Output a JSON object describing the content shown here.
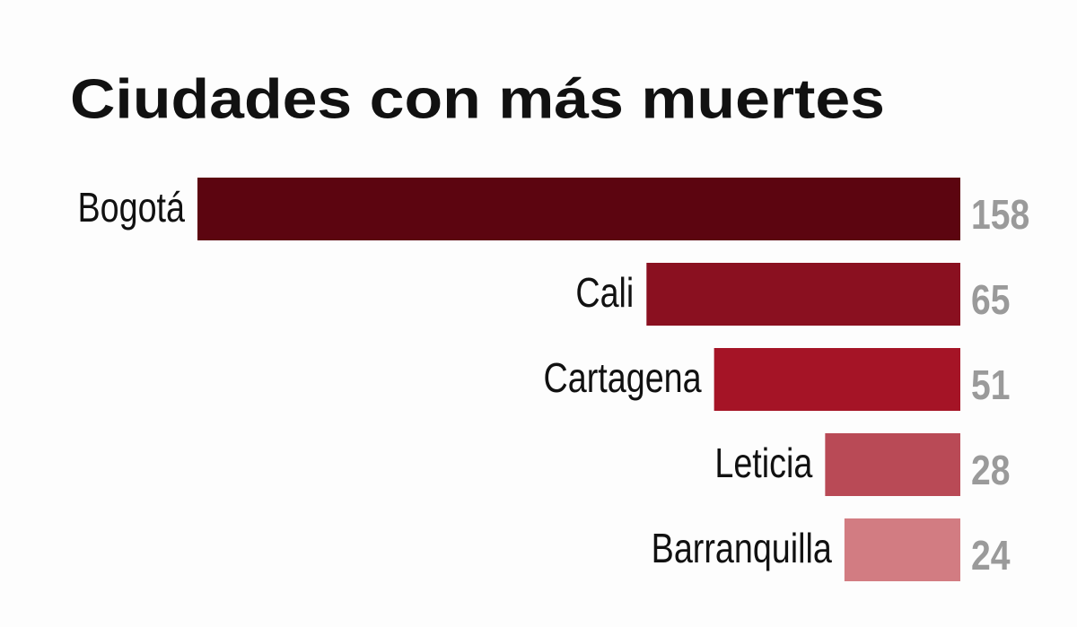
{
  "chart_data": {
    "type": "bar",
    "orientation": "horizontal",
    "title": "Ciudades con más muertes",
    "categories": [
      "Bogotá",
      "Cali",
      "Cartagena",
      "Leticia",
      "Barranquilla"
    ],
    "values": [
      158,
      65,
      51,
      28,
      24
    ],
    "colors": [
      "#5c0510",
      "#8a1020",
      "#a51426",
      "#b94a56",
      "#d27c82"
    ]
  }
}
